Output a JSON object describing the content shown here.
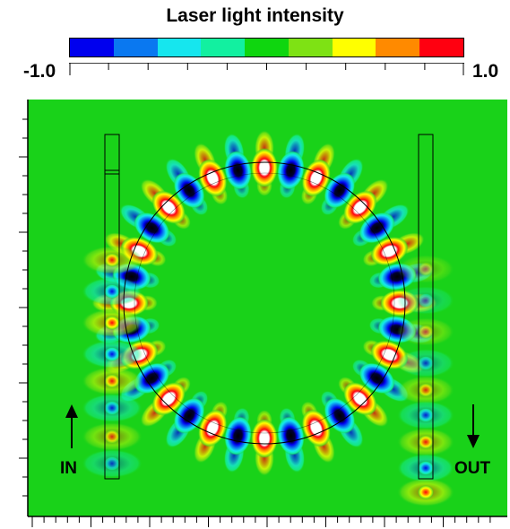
{
  "colorbar": {
    "title": "Laser light intensity",
    "min_label": "-1.0",
    "max_label": "1.0",
    "colors": [
      "#0000ee",
      "#0a78f0",
      "#16e6ee",
      "#12f0a0",
      "#0fd60f",
      "#7ee214",
      "#ffff00",
      "#ff8a00",
      "#ff0010"
    ]
  },
  "field": {
    "background_color": "#19d219",
    "input_label": "IN",
    "output_label": "OUT"
  }
}
